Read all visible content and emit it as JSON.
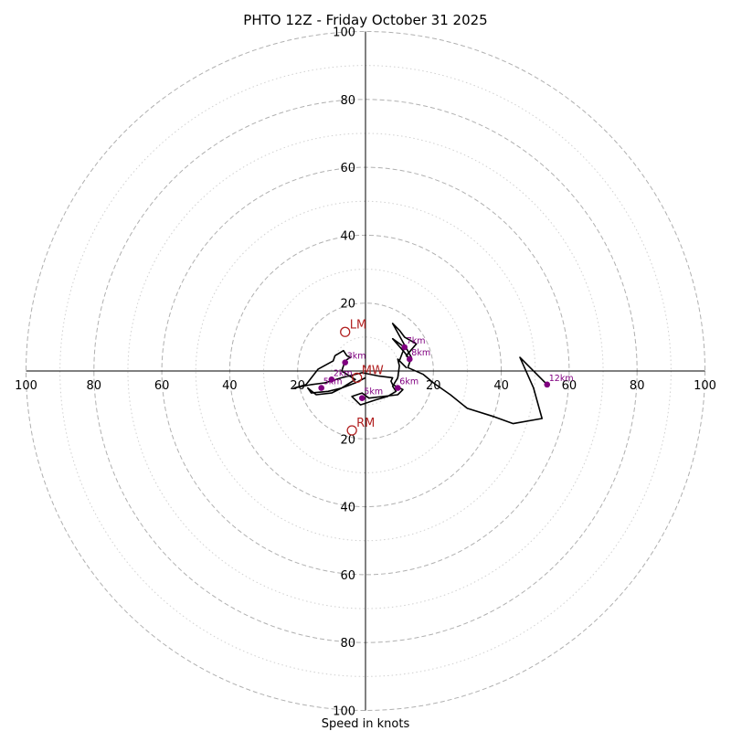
{
  "chart_data": {
    "type": "hodograph",
    "title": "PHTO 12Z - Friday October 31 2025",
    "xlabel": "Speed in knots",
    "ylabel": "",
    "xlim": [
      -100,
      100
    ],
    "ylim": [
      -100,
      100
    ],
    "ring_major": [
      20,
      40,
      60,
      80,
      100
    ],
    "ring_minor": [
      10,
      30,
      50,
      70,
      90
    ],
    "tick_values": [
      20,
      40,
      60,
      80,
      100
    ],
    "tick_labels": [
      "20",
      "40",
      "60",
      "80",
      "100"
    ],
    "trace": [
      [
        0.0,
        -2.0
      ],
      [
        -3.0,
        -3.5
      ],
      [
        -7.0,
        -5.0
      ],
      [
        -10.0,
        -6.5
      ],
      [
        -14.5,
        -7.0
      ],
      [
        -17.0,
        -5.0
      ],
      [
        -16.0,
        -6.5
      ],
      [
        -11.0,
        -6.0
      ],
      [
        -7.0,
        -5.0
      ],
      [
        -3.0,
        -2.5
      ],
      [
        -5.5,
        -1.0
      ],
      [
        -7.0,
        0.0
      ],
      [
        -6.0,
        3.0
      ],
      [
        -4.5,
        4.0
      ],
      [
        -5.5,
        4.5
      ],
      [
        -6.5,
        6.0
      ],
      [
        -9.0,
        4.5
      ],
      [
        -9.5,
        3.0
      ],
      [
        -14.0,
        0.5
      ],
      [
        -17.5,
        -4.0
      ],
      [
        -21.0,
        -5.0
      ],
      [
        -16.0,
        -4.0
      ],
      [
        -12.0,
        -3.5
      ],
      [
        -7.0,
        -2.0
      ],
      [
        -1.0,
        -0.5
      ],
      [
        4.0,
        -1.5
      ],
      [
        8.0,
        -2.0
      ],
      [
        7.5,
        -3.0
      ],
      [
        8.0,
        -4.0
      ],
      [
        11.0,
        -5.5
      ],
      [
        9.5,
        -7.0
      ],
      [
        1.0,
        -8.0
      ],
      [
        -1.0,
        -6.5
      ],
      [
        -4.0,
        -7.5
      ],
      [
        -1.5,
        -10.0
      ],
      [
        3.0,
        -8.5
      ],
      [
        6.5,
        -7.5
      ],
      [
        9.0,
        -6.0
      ],
      [
        8.0,
        -4.5
      ],
      [
        9.5,
        -2.0
      ],
      [
        10.0,
        1.5
      ],
      [
        9.5,
        3.5
      ],
      [
        12.0,
        1.0
      ],
      [
        10.0,
        3.0
      ],
      [
        11.5,
        7.0
      ],
      [
        8.0,
        9.5
      ],
      [
        11.5,
        5.5
      ],
      [
        13.0,
        3.5
      ],
      [
        12.0,
        4.5
      ],
      [
        15.0,
        8.0
      ],
      [
        11.5,
        10.0
      ],
      [
        10.0,
        12.0
      ],
      [
        8.0,
        14.0
      ],
      [
        13.5,
        4.0
      ],
      [
        12.5,
        1.0
      ],
      [
        17.0,
        -1.0
      ],
      [
        20.0,
        -3.5
      ],
      [
        25.0,
        -7.0
      ],
      [
        30.0,
        -11.0
      ],
      [
        38.0,
        -13.5
      ],
      [
        43.5,
        -15.5
      ],
      [
        52.0,
        -14.0
      ],
      [
        49.5,
        -5.0
      ],
      [
        45.5,
        4.0
      ],
      [
        53.5,
        -4.0
      ]
    ],
    "height_markers": [
      {
        "label": "2km",
        "x": -10.0,
        "y": -2.5
      },
      {
        "label": "3km",
        "x": -6.0,
        "y": 2.5
      },
      {
        "label": "5km",
        "x": -13.0,
        "y": -5.0
      },
      {
        "label": "5km",
        "x": -1.0,
        "y": -8.0
      },
      {
        "label": "6km",
        "x": 9.5,
        "y": -5.0
      },
      {
        "label": "7km",
        "x": 11.5,
        "y": 7.0
      },
      {
        "label": "8km",
        "x": 13.0,
        "y": 3.5
      },
      {
        "label": "12km",
        "x": 53.5,
        "y": -4.0
      }
    ],
    "storm_motion": [
      {
        "label": "LM",
        "x": -6.0,
        "y": 11.5
      },
      {
        "label": "RM",
        "x": -4.0,
        "y": -17.5
      },
      {
        "label": "MW",
        "x": -2.5,
        "y": -2.0
      }
    ],
    "colors": {
      "trace": "#000000",
      "marker": "#800080",
      "storm": "#b22222",
      "ring": "#b0b0b0",
      "axis": "#000000"
    }
  }
}
